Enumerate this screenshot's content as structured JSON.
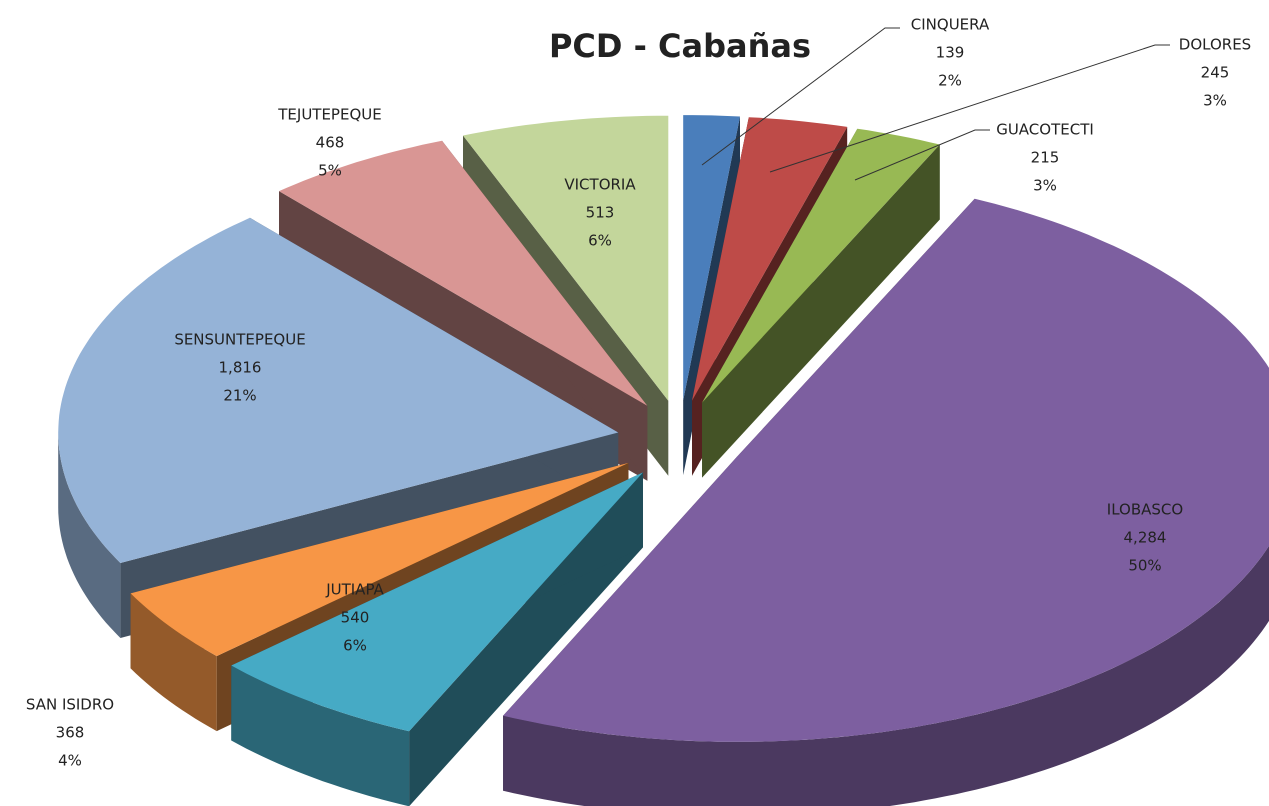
{
  "chart_data": {
    "type": "pie3d",
    "title": "PCD - Cabañas",
    "categories": [
      "CINQUERA",
      "DOLORES",
      "GUACOTECTI",
      "ILOBASCO",
      "JUTIAPA",
      "SAN ISIDRO",
      "SENSUNTEPEQUE",
      "TEJUTEPEQUE",
      "VICTORIA"
    ],
    "values": [
      139,
      245,
      215,
      4284,
      540,
      368,
      1816,
      468,
      513
    ],
    "value_labels": [
      "139",
      "245",
      "215",
      "4,284",
      "540",
      "368",
      "1,816",
      "468",
      "513"
    ],
    "percent_labels": [
      "2%",
      "3%",
      "3%",
      "50%",
      "6%",
      "4%",
      "21%",
      "5%",
      "6%"
    ],
    "colors": [
      "#4a7ebb",
      "#be4b48",
      "#98b954",
      "#7d5fa0",
      "#46aac5",
      "#f79646",
      "#95b3d7",
      "#d99694",
      "#c3d69b"
    ]
  }
}
